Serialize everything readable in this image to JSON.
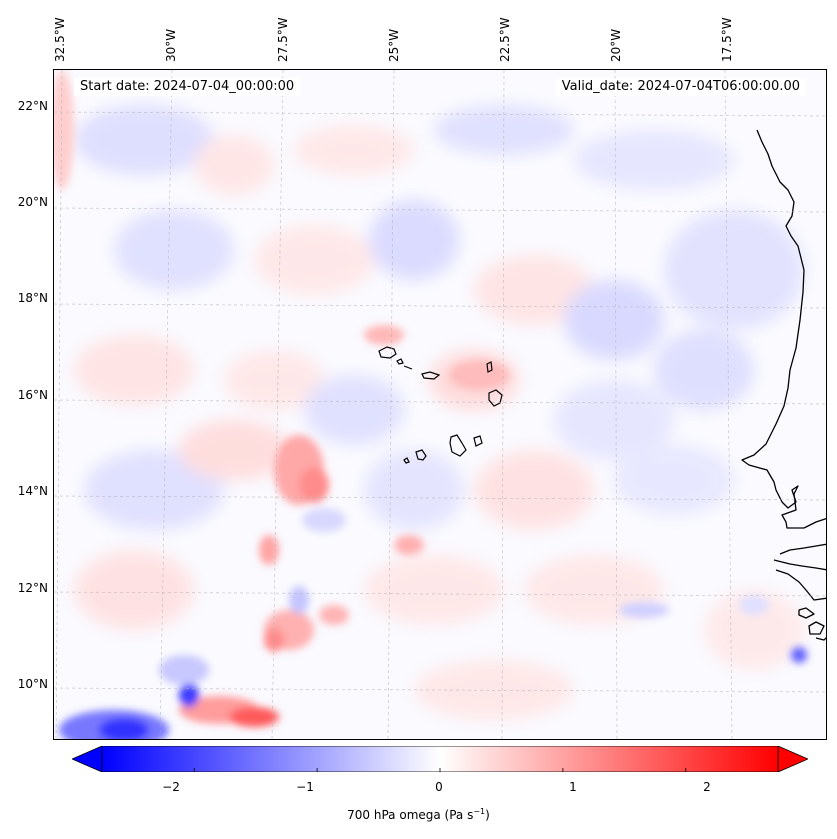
{
  "longitude_labels": [
    "32.5°W",
    "30°W",
    "27.5°W",
    "25°W",
    "22.5°W",
    "20°W",
    "17.5°W"
  ],
  "latitude_labels": [
    "22°N",
    "20°N",
    "18°N",
    "16°N",
    "14°N",
    "12°N",
    "10°N"
  ],
  "start_date": "Start date: 2024-07-04_00:00:00",
  "valid_date": "Valid_date: 2024-07-04T06:00:00.00",
  "colorbar": {
    "ticks": [
      "−2",
      "−1",
      "0",
      "1",
      "2"
    ],
    "tick_values": [
      -2,
      -1,
      0,
      1,
      2
    ],
    "range": [
      -2.75,
      2.75
    ],
    "colormap": "bwr",
    "extend": "both",
    "label_main": "700 hPa omega (Pa s",
    "label_sup": "−1",
    "label_end": ")"
  },
  "colors": {
    "negative": "#0000ff",
    "neutral": "#ffffff",
    "positive": "#ff0000",
    "coastline": "#000000"
  }
}
